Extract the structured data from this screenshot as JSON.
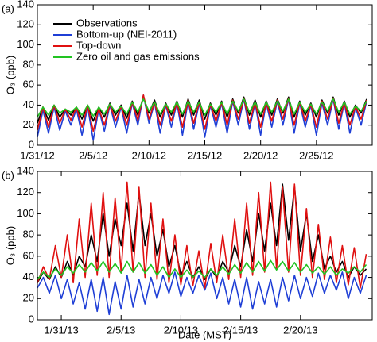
{
  "chart_data": [
    {
      "type": "line",
      "label": "(a)",
      "ylabel": "O₃ (ppb)",
      "x": [
        31,
        31.5,
        32,
        32.5,
        33,
        33.5,
        34,
        34.5,
        35,
        35.5,
        36,
        36.5,
        37,
        37.5,
        38,
        38.5,
        39,
        39.5,
        40,
        40.5,
        41,
        41.5,
        42,
        42.5,
        43,
        43.5,
        44,
        44.5,
        45,
        45.5,
        46,
        46.5,
        47,
        47.5,
        48,
        48.5,
        49,
        49.5,
        50,
        50.5,
        51,
        51.5,
        52,
        52.5,
        53,
        53.5,
        54,
        54.5,
        55,
        55.5,
        56,
        56.5,
        57,
        57.5,
        58,
        58.5,
        59,
        59.5,
        60,
        60.5
      ],
      "xlim": [
        31,
        61
      ],
      "xticks": [
        {
          "value": 31,
          "label": "1/31/12"
        },
        {
          "value": 36,
          "label": "2/5/12"
        },
        {
          "value": 41,
          "label": "2/10/12"
        },
        {
          "value": 46,
          "label": "2/15/12"
        },
        {
          "value": 51,
          "label": "2/20/12"
        },
        {
          "value": 56,
          "label": "2/25/12"
        }
      ],
      "ylim": [
        0,
        140
      ],
      "yticks": [
        0,
        20,
        40,
        60,
        80,
        100,
        120,
        140
      ],
      "legend": "upper left",
      "series": [
        {
          "name": "Observations",
          "color": "#000000",
          "values": [
            22,
            38,
            25,
            40,
            28,
            36,
            30,
            38,
            26,
            40,
            24,
            38,
            28,
            42,
            30,
            40,
            27,
            44,
            30,
            48,
            32,
            45,
            28,
            42,
            30,
            44,
            28,
            46,
            30,
            45,
            26,
            42,
            30,
            44,
            28,
            46,
            32,
            48,
            30,
            45,
            28,
            44,
            30,
            46,
            32,
            48,
            28,
            44,
            30,
            42,
            28,
            45,
            32,
            48,
            30,
            44,
            28,
            40,
            32,
            46
          ]
        },
        {
          "name": "Bottom-up (NEI-2011)",
          "color": "#1f3fd6",
          "values": [
            8,
            35,
            12,
            38,
            15,
            34,
            20,
            36,
            10,
            38,
            5,
            36,
            14,
            40,
            18,
            38,
            12,
            42,
            20,
            50,
            22,
            42,
            12,
            40,
            18,
            42,
            10,
            44,
            16,
            42,
            8,
            40,
            18,
            42,
            12,
            44,
            20,
            46,
            16,
            42,
            10,
            42,
            18,
            44,
            20,
            46,
            12,
            42,
            18,
            40,
            10,
            42,
            20,
            46,
            16,
            42,
            12,
            38,
            20,
            44
          ]
        },
        {
          "name": "Top-down",
          "color": "#e01010",
          "values": [
            15,
            38,
            18,
            40,
            22,
            36,
            25,
            38,
            18,
            40,
            14,
            37,
            20,
            41,
            24,
            39,
            20,
            43,
            25,
            50,
            26,
            43,
            20,
            41,
            24,
            43,
            18,
            45,
            22,
            43,
            16,
            41,
            24,
            43,
            20,
            45,
            26,
            47,
            22,
            43,
            18,
            43,
            24,
            45,
            26,
            47,
            20,
            43,
            24,
            41,
            18,
            44,
            26,
            47,
            22,
            43,
            20,
            39,
            26,
            45
          ]
        },
        {
          "name": "Zero oil and gas emissions",
          "color": "#22c322",
          "values": [
            28,
            38,
            30,
            40,
            32,
            36,
            33,
            38,
            30,
            40,
            29,
            38,
            31,
            41,
            33,
            39,
            31,
            43,
            33,
            46,
            34,
            43,
            31,
            41,
            33,
            43,
            31,
            44,
            33,
            43,
            30,
            41,
            33,
            43,
            31,
            44,
            34,
            46,
            33,
            43,
            31,
            43,
            33,
            44,
            34,
            46,
            31,
            43,
            33,
            41,
            31,
            43,
            34,
            46,
            33,
            43,
            31,
            39,
            34,
            44
          ]
        }
      ]
    },
    {
      "type": "line",
      "label": "(b)",
      "ylabel": "O₃ (ppb)",
      "xlabel": "Date (MST)",
      "x": [
        29,
        29.5,
        30,
        30.5,
        31,
        31.5,
        32,
        32.5,
        33,
        33.5,
        34,
        34.5,
        35,
        35.5,
        36,
        36.5,
        37,
        37.5,
        38,
        38.5,
        39,
        39.5,
        40,
        40.5,
        41,
        41.5,
        42,
        42.5,
        43,
        43.5,
        44,
        44.5,
        45,
        45.5,
        46,
        46.5,
        47,
        47.5,
        48,
        48.5,
        49,
        49.5,
        50,
        50.5,
        51,
        51.5,
        52,
        52.5,
        53,
        53.5,
        54,
        54.5,
        55,
        55.5,
        56,
        56.5
      ],
      "xlim": [
        29,
        57
      ],
      "xticks": [
        {
          "value": 31,
          "label": "1/31/13"
        },
        {
          "value": 36,
          "label": "2/5/13"
        },
        {
          "value": 41,
          "label": "2/10/13"
        },
        {
          "value": 46,
          "label": "2/15/13"
        },
        {
          "value": 51,
          "label": "2/20/13"
        }
      ],
      "ylim": [
        0,
        140
      ],
      "yticks": [
        0,
        20,
        40,
        60,
        80,
        100,
        120,
        140
      ],
      "series": [
        {
          "name": "Observations",
          "color": "#000000",
          "values": [
            35,
            45,
            38,
            50,
            40,
            55,
            42,
            60,
            50,
            80,
            55,
            100,
            60,
            95,
            70,
            110,
            65,
            120,
            70,
            100,
            60,
            85,
            50,
            70,
            42,
            55,
            40,
            50,
            38,
            48,
            40,
            55,
            45,
            70,
            50,
            85,
            55,
            100,
            65,
            110,
            70,
            128,
            75,
            125,
            65,
            100,
            55,
            80,
            48,
            60,
            45,
            55,
            40,
            50,
            42,
            48
          ]
        },
        {
          "name": "Bottom-up (NEI-2011)",
          "color": "#1f3fd6",
          "values": [
            30,
            40,
            25,
            42,
            20,
            38,
            15,
            35,
            10,
            38,
            8,
            40,
            5,
            36,
            10,
            42,
            12,
            38,
            15,
            40,
            20,
            42,
            25,
            45,
            22,
            40,
            25,
            42,
            28,
            44,
            20,
            40,
            15,
            38,
            12,
            40,
            10,
            36,
            15,
            38,
            12,
            40,
            18,
            42,
            20,
            40,
            22,
            44,
            25,
            42,
            28,
            45,
            20,
            40,
            25,
            42
          ]
        },
        {
          "name": "Top-down",
          "color": "#e01010",
          "values": [
            35,
            50,
            38,
            70,
            40,
            80,
            35,
            95,
            40,
            110,
            42,
            120,
            40,
            115,
            45,
            130,
            45,
            125,
            40,
            110,
            38,
            95,
            35,
            80,
            33,
            70,
            32,
            65,
            30,
            72,
            35,
            80,
            38,
            95,
            40,
            110,
            42,
            120,
            45,
            130,
            48,
            125,
            45,
            128,
            42,
            105,
            40,
            90,
            38,
            78,
            35,
            70,
            33,
            68,
            30,
            62
          ]
        },
        {
          "name": "Zero oil and gas emissions",
          "color": "#22c322",
          "values": [
            38,
            45,
            40,
            48,
            42,
            50,
            44,
            52,
            45,
            54,
            46,
            55,
            45,
            53,
            44,
            55,
            45,
            54,
            44,
            52,
            42,
            50,
            40,
            48,
            40,
            47,
            40,
            46,
            40,
            48,
            42,
            50,
            43,
            52,
            44,
            54,
            45,
            55,
            46,
            56,
            47,
            55,
            46,
            54,
            45,
            52,
            44,
            50,
            43,
            50,
            42,
            48,
            44,
            50,
            45,
            52
          ]
        }
      ]
    }
  ]
}
